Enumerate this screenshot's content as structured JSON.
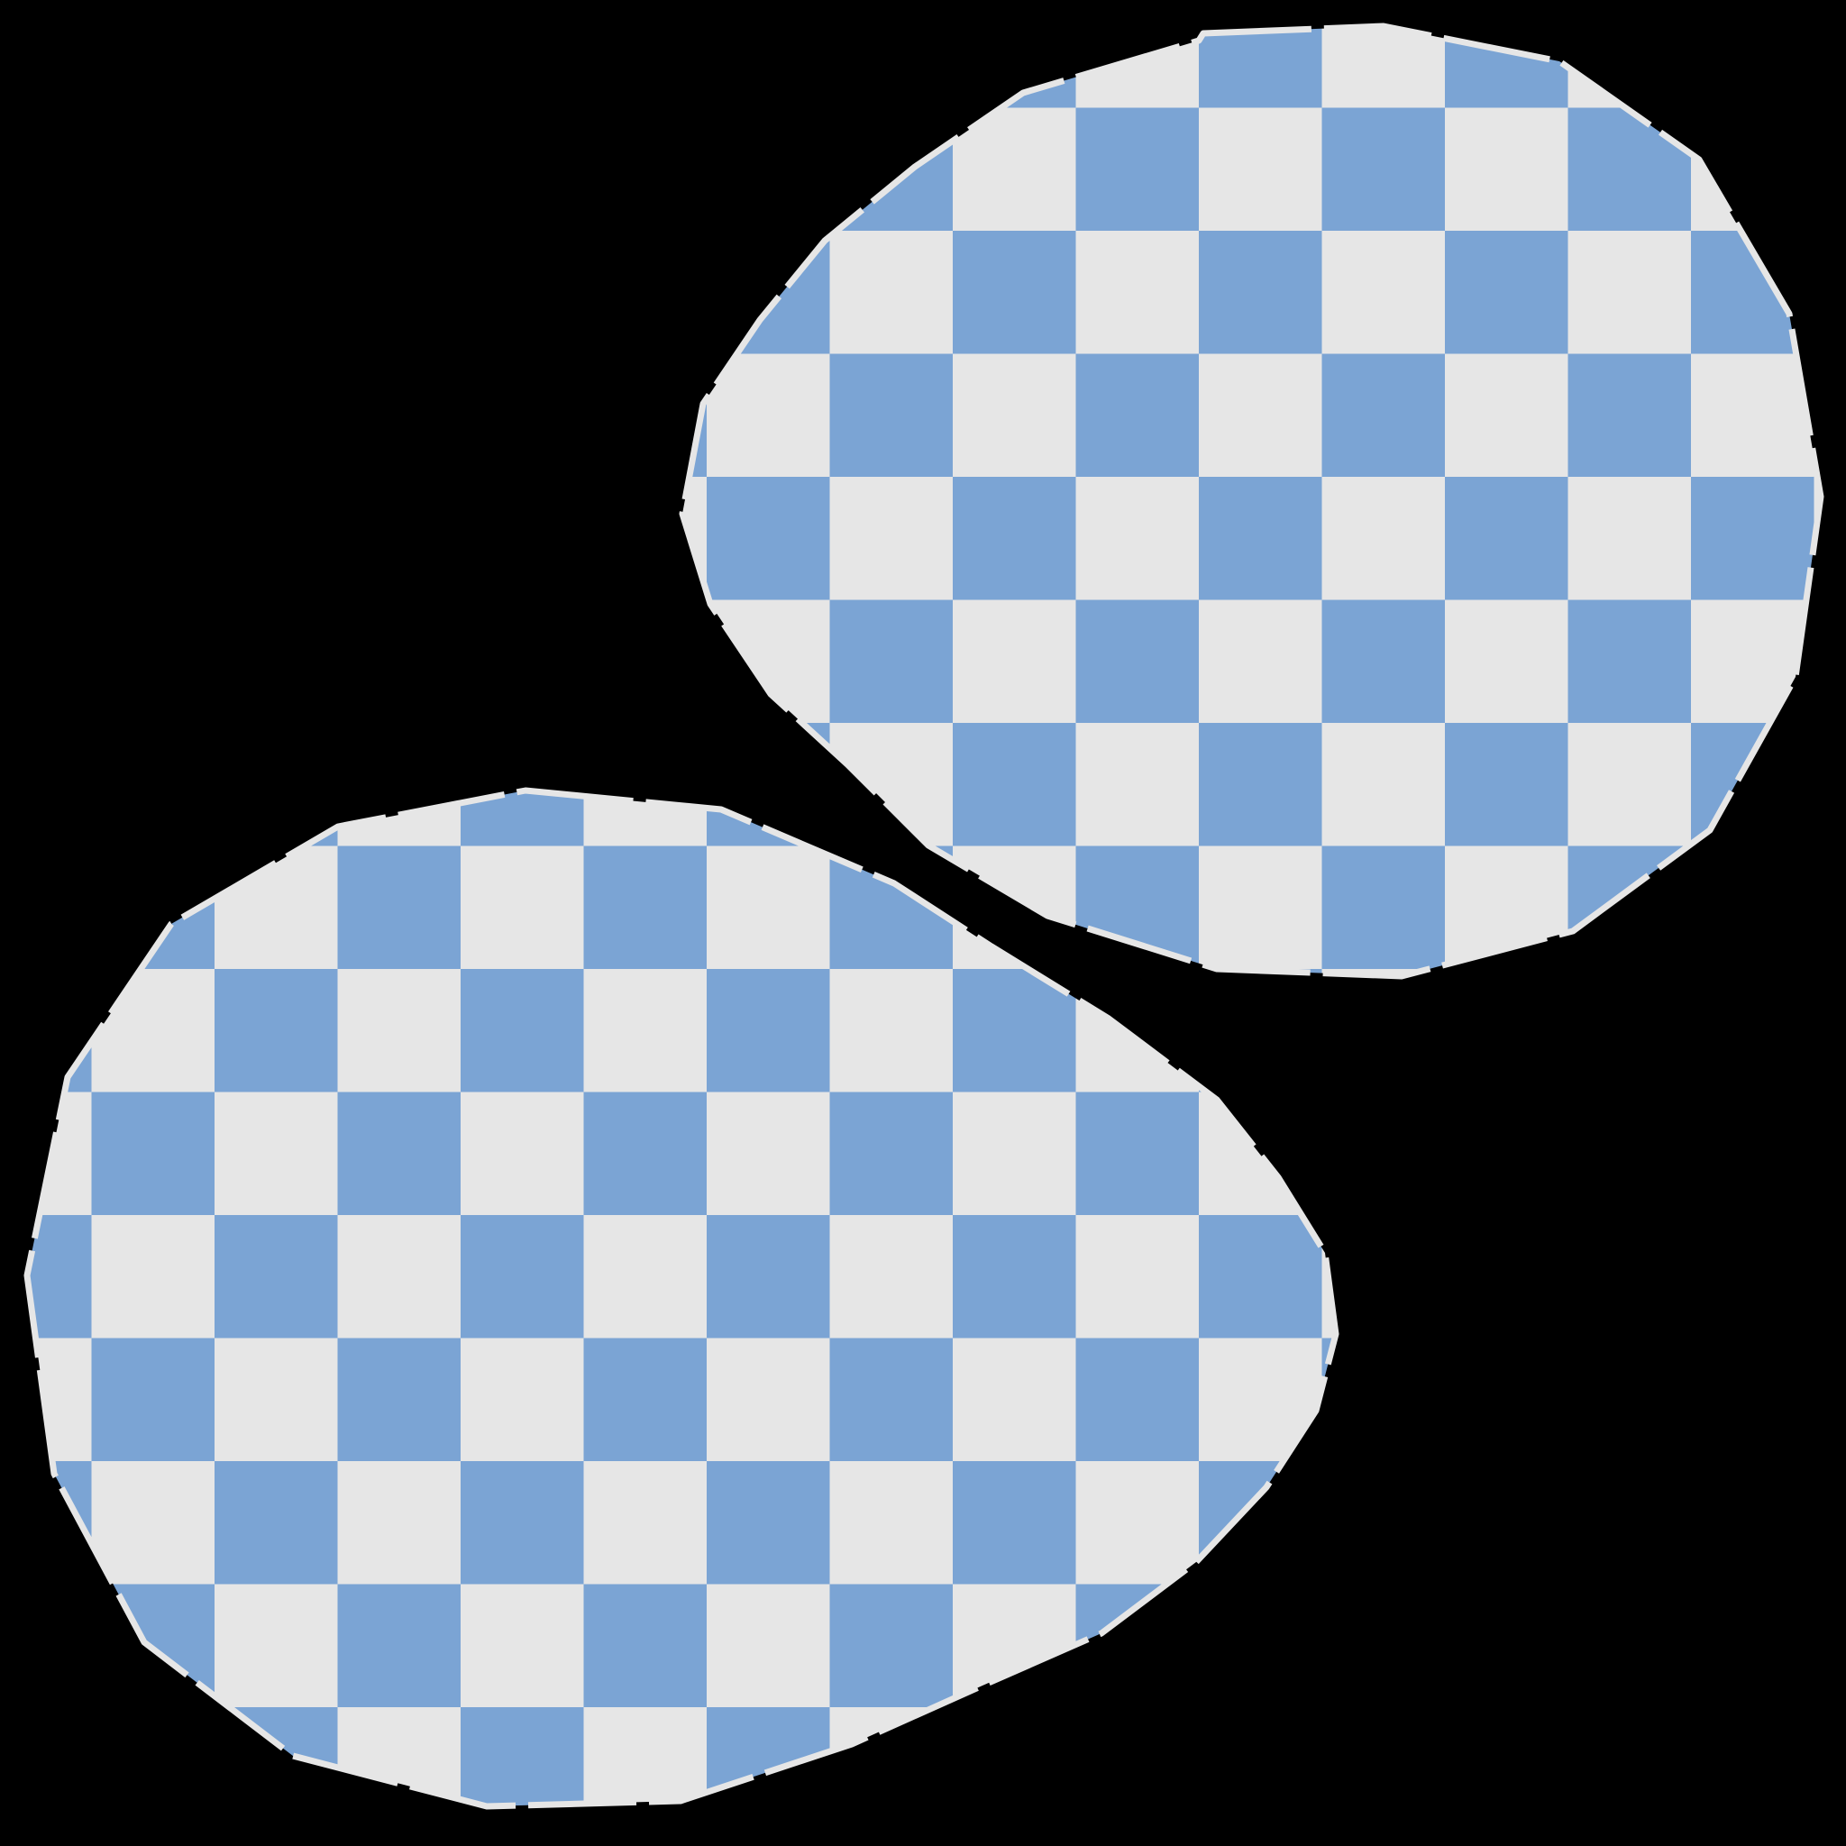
{
  "scene": {
    "description_free": true,
    "colors": {
      "background": "#000000",
      "check_dark": "#7BA4D4",
      "check_light": "#E6E6E6",
      "outline": "#E6E6E6"
    },
    "shapes": [
      {
        "name": "blob-upper-right",
        "checks": "checkerboard"
      },
      {
        "name": "blob-lower-left",
        "checks": "checkerboard"
      }
    ]
  }
}
